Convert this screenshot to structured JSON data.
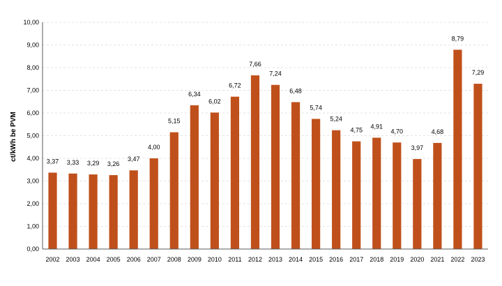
{
  "chart_data": {
    "type": "bar",
    "categories": [
      "2002",
      "2003",
      "2004",
      "2005",
      "2006",
      "2007",
      "2008",
      "2009",
      "2010",
      "2011",
      "2012",
      "2013",
      "2014",
      "2015",
      "2016",
      "2017",
      "2018",
      "2019",
      "2020",
      "2021",
      "2022",
      "2023"
    ],
    "values": [
      3.37,
      3.33,
      3.29,
      3.26,
      3.47,
      4.0,
      5.15,
      6.34,
      6.02,
      6.72,
      7.66,
      7.24,
      6.48,
      5.74,
      5.24,
      4.75,
      4.91,
      4.7,
      3.97,
      4.68,
      8.79,
      7.29
    ],
    "value_labels": [
      "3,37",
      "3,33",
      "3,29",
      "3,26",
      "3,47",
      "4,00",
      "5,15",
      "6,34",
      "6,02",
      "6,72",
      "7,66",
      "7,24",
      "6,48",
      "5,74",
      "5,24",
      "4,75",
      "4,91",
      "4,70",
      "3,97",
      "4,68",
      "8,79",
      "7,29"
    ],
    "ylabel": "ct/kWh  be PVM",
    "ylim": [
      0,
      10
    ],
    "y_ticks": [
      "0,00",
      "1,00",
      "2,00",
      "3,00",
      "4,00",
      "5,00",
      "6,00",
      "7,00",
      "8,00",
      "9,00",
      "10,00"
    ],
    "grid": true,
    "legend": "none",
    "bar_color": "#c0501b"
  }
}
